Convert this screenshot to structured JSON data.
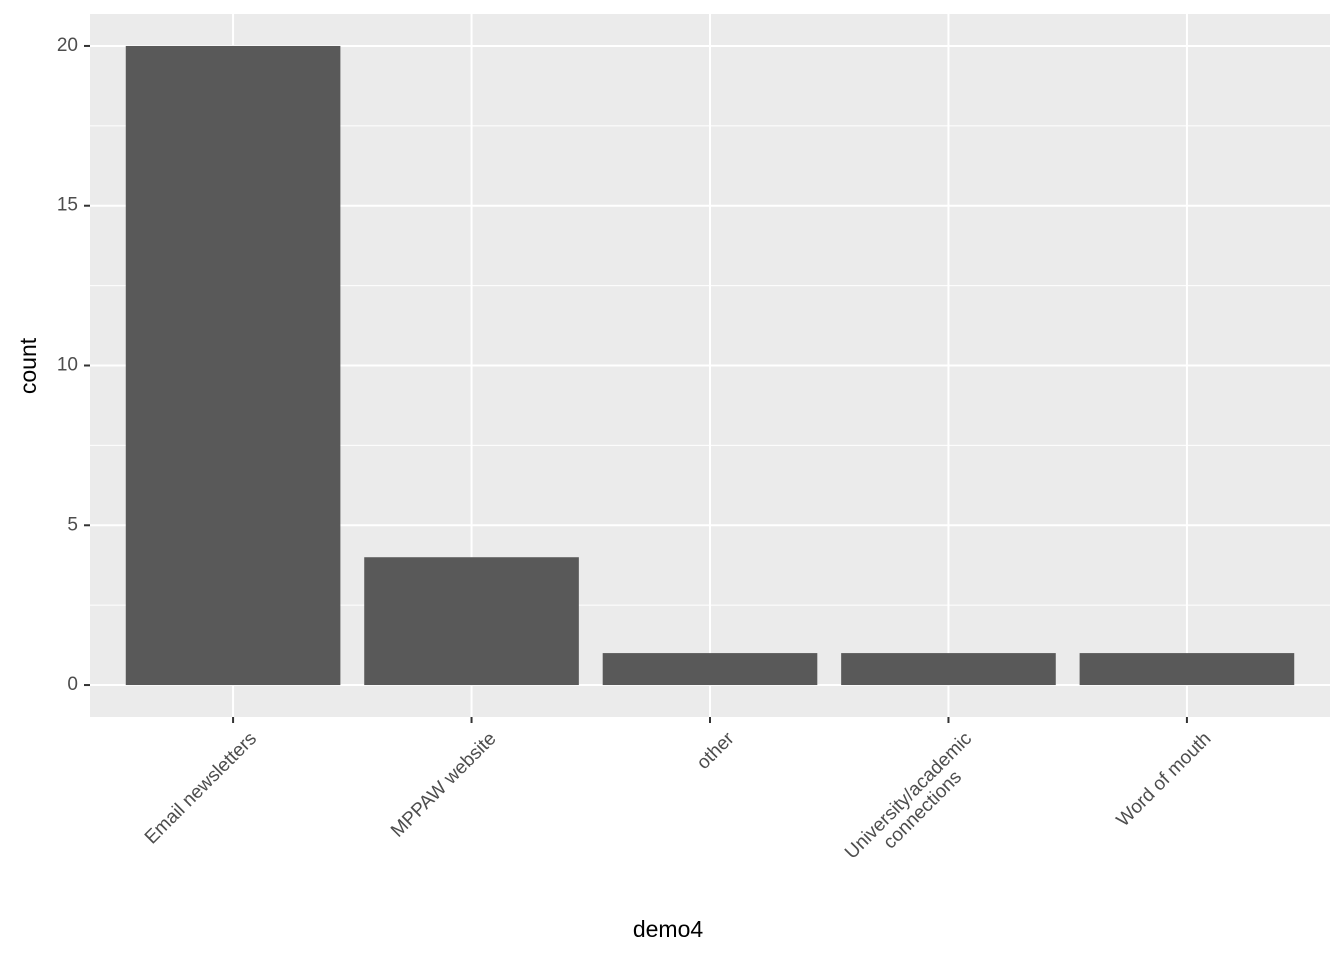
{
  "chart_data": {
    "type": "bar",
    "x_label": "demo4",
    "y_label": "count",
    "categories": [
      "Email newsletters",
      "MPPAW website",
      "other",
      "University/academic\nconnections",
      "Word of mouth"
    ],
    "values": [
      20,
      4,
      1,
      1,
      1
    ],
    "color": "#595959",
    "ylim": [
      -1,
      21
    ],
    "yticks": [
      0,
      5,
      10,
      15,
      20
    ],
    "yminor": [
      2.5,
      7.5,
      12.5,
      17.5
    ],
    "grid": true
  }
}
